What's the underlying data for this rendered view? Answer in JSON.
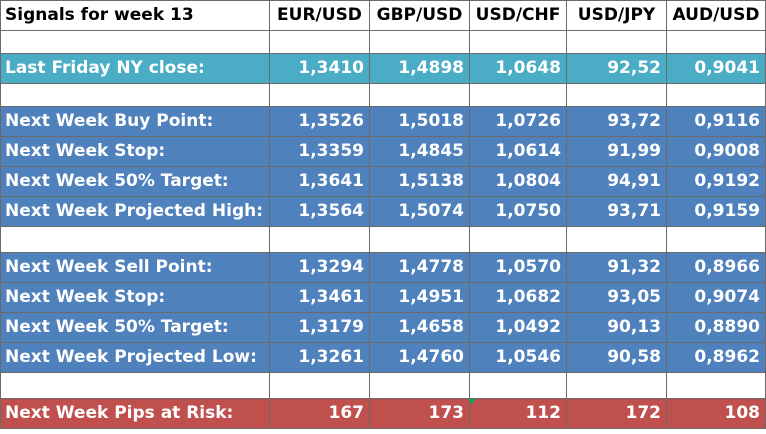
{
  "header": {
    "title": "Signals for week 13",
    "pairs": [
      "EUR/USD",
      "GBP/USD",
      "USD/CHF",
      "USD/JPY",
      "AUD/USD"
    ]
  },
  "close": {
    "label": "Last Friday NY close:",
    "values": [
      "1,3410",
      "1,4898",
      "1,0648",
      "92,52",
      "0,9041"
    ]
  },
  "buy": [
    {
      "label": "Next Week Buy Point:",
      "values": [
        "1,3526",
        "1,5018",
        "1,0726",
        "93,72",
        "0,9116"
      ]
    },
    {
      "label": "Next Week Stop:",
      "values": [
        "1,3359",
        "1,4845",
        "1,0614",
        "91,99",
        "0,9008"
      ]
    },
    {
      "label": "Next Week 50% Target:",
      "values": [
        "1,3641",
        "1,5138",
        "1,0804",
        "94,91",
        "0,9192"
      ]
    },
    {
      "label": "Next Week Projected High:",
      "values": [
        "1,3564",
        "1,5074",
        "1,0750",
        "93,71",
        "0,9159"
      ]
    }
  ],
  "sell": [
    {
      "label": "Next Week Sell Point:",
      "values": [
        "1,3294",
        "1,4778",
        "1,0570",
        "91,32",
        "0,8966"
      ]
    },
    {
      "label": "Next Week Stop:",
      "values": [
        "1,3461",
        "1,4951",
        "1,0682",
        "93,05",
        "0,9074"
      ]
    },
    {
      "label": "Next Week 50% Target:",
      "values": [
        "1,3179",
        "1,4658",
        "1,0492",
        "90,13",
        "0,8890"
      ]
    },
    {
      "label": "Next Week Projected Low:",
      "values": [
        "1,3261",
        "1,4760",
        "1,0546",
        "90,58",
        "0,8962"
      ]
    }
  ],
  "risk": {
    "label": "Next Week Pips at Risk:",
    "values": [
      "167",
      "173",
      "112",
      "172",
      "108"
    ]
  },
  "colors": {
    "teal_row": "#4bacc6",
    "blue_rows": "#4f81bd",
    "red_row": "#c0504d",
    "comment_marker": "#00b050"
  }
}
